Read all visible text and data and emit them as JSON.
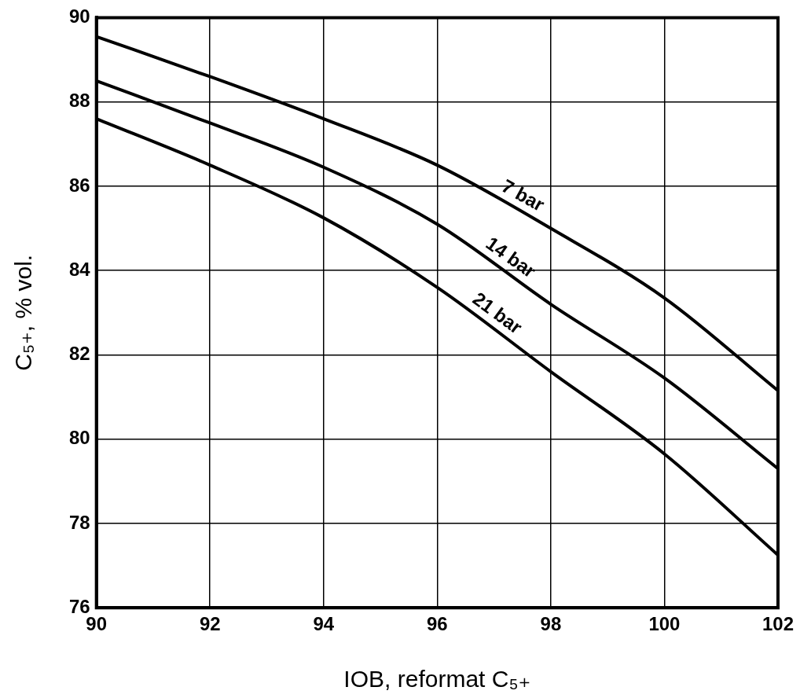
{
  "chart_data": {
    "type": "line",
    "xlabel": "IOB, reformat C₅₊",
    "ylabel": "C₅₊, % vol.",
    "x": [
      90,
      92,
      94,
      96,
      98,
      100,
      102
    ],
    "series": [
      {
        "name": "7 bar",
        "color": "#000000",
        "values": [
          89.55,
          88.6,
          87.6,
          86.5,
          85.0,
          83.35,
          81.15
        ]
      },
      {
        "name": "14 bar",
        "color": "#000000",
        "values": [
          88.5,
          87.5,
          86.45,
          85.1,
          83.2,
          81.45,
          79.3
        ]
      },
      {
        "name": "21 bar",
        "color": "#000000",
        "values": [
          87.6,
          86.5,
          85.25,
          83.6,
          81.6,
          79.65,
          77.25
        ]
      }
    ],
    "xlim": [
      90,
      102
    ],
    "xticks": [
      90,
      92,
      94,
      96,
      98,
      100,
      102
    ],
    "ylim": [
      76,
      90
    ],
    "yticks": [
      76,
      78,
      80,
      82,
      84,
      86,
      88,
      90
    ],
    "grid": true,
    "legend": false,
    "marker": "none",
    "line_style": "solid"
  }
}
